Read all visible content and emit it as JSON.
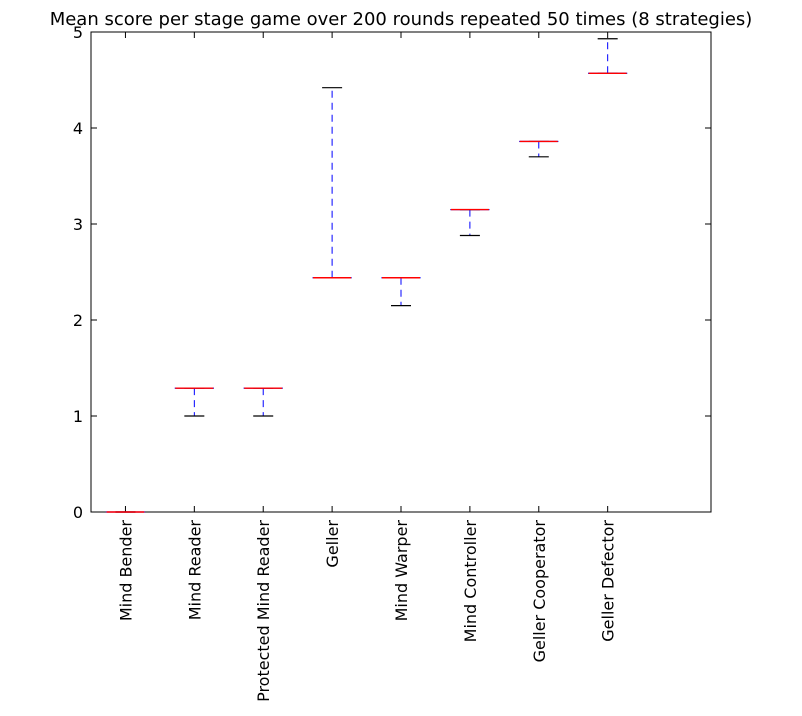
{
  "chart_data": {
    "type": "box",
    "title": "Mean score per stage game over 200 rounds repeated 50 times (8 strategies)",
    "xlabel": "",
    "ylabel": "",
    "ylim": [
      0,
      5
    ],
    "xlim": [
      0.5,
      9.5
    ],
    "yticks": [
      0,
      1,
      2,
      3,
      4,
      5
    ],
    "grid": false,
    "legend": "none",
    "categories": [
      "Mind Bender",
      "Mind Reader",
      "Protected Mind Reader",
      "Geller",
      "Mind Warper",
      "Mind Controller",
      "Geller Cooperator",
      "Geller Defector"
    ],
    "boxes": [
      {
        "min": 0.0,
        "q1": 0.0,
        "median": 0.0,
        "q3": 0.0,
        "max": 0.0
      },
      {
        "min": 1.0,
        "q1": 1.29,
        "median": 1.29,
        "q3": 1.29,
        "max": 1.29
      },
      {
        "min": 1.0,
        "q1": 1.29,
        "median": 1.29,
        "q3": 1.29,
        "max": 1.29
      },
      {
        "min": 2.44,
        "q1": 2.44,
        "median": 2.44,
        "q3": 2.44,
        "max": 4.42
      },
      {
        "min": 2.15,
        "q1": 2.44,
        "median": 2.44,
        "q3": 2.44,
        "max": 2.44
      },
      {
        "min": 2.88,
        "q1": 3.15,
        "median": 3.15,
        "q3": 3.15,
        "max": 3.15
      },
      {
        "min": 3.7,
        "q1": 3.86,
        "median": 3.86,
        "q3": 3.86,
        "max": 3.86
      },
      {
        "min": 4.57,
        "q1": 4.57,
        "median": 4.57,
        "q3": 4.57,
        "max": 4.93
      }
    ],
    "colors": {
      "box": "#0000ff",
      "whisker": "#0000ff",
      "cap": "#000000",
      "median": "#ff0000"
    }
  }
}
